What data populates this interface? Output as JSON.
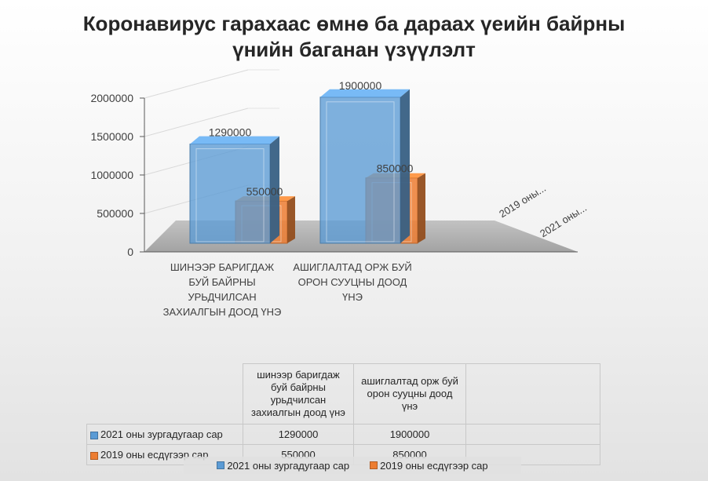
{
  "chart_data": {
    "type": "bar",
    "title": "Коронавирус гарахаас өмнө ба дараах үеийн байрны үнийн баганан үзүүлэлт",
    "title_lines": [
      "Коронавирус гарахаас өмнө ба дараах үеийн байрны",
      "үнийн баганан үзүүлэлт"
    ],
    "categories": [
      "ШИНЭЭР БАРИГДАЖ БУЙ БАЙРНЫ УРЬДЧИЛСАН ЗАХИАЛГЫН ДООД ҮНЭ",
      "АШИГЛАЛТАД ОРЖ БУЙ ОРОН СУУЦНЫ ДООД ҮНЭ"
    ],
    "category_label_lines": [
      [
        "ШИНЭЭР БАРИГДАЖ",
        "БУЙ БАЙРНЫ",
        "УРЬДЧИЛСАН",
        "ЗАХИАЛГЫН ДООД ҮНЭ"
      ],
      [
        "АШИГЛАЛТАД ОРЖ БУЙ",
        "ОРОН СУУЦНЫ ДООД",
        "ҮНЭ"
      ]
    ],
    "table_headers": [
      "шинээр баригдаж буй байрны урьдчилсан захиалгын доод үнэ",
      "ашиглалтад орж буй орон сууцны доод үнэ"
    ],
    "table_header_lines": [
      [
        "шинээр баригдаж",
        "буй байрны",
        "урьдчилсан",
        "захиалгын доод үнэ"
      ],
      [
        "ашиглалтад орж буй",
        "орон сууцны доод",
        "үнэ"
      ]
    ],
    "series": [
      {
        "name": "2021 оны зургадугаар сар",
        "values": [
          1290000,
          1900000
        ],
        "color": "#5b9bd5"
      },
      {
        "name": "2019 оны есдүгээр сар",
        "values": [
          550000,
          850000
        ],
        "color": "#ed7d31"
      }
    ],
    "depth_axis_labels": [
      "2019 оны...",
      "2021 оны..."
    ],
    "yticks": [
      "0",
      "500000",
      "1000000",
      "1500000",
      "2000000"
    ],
    "ylim": [
      0,
      2000000
    ],
    "grid": true,
    "legend": "bottom",
    "data_table": true
  }
}
